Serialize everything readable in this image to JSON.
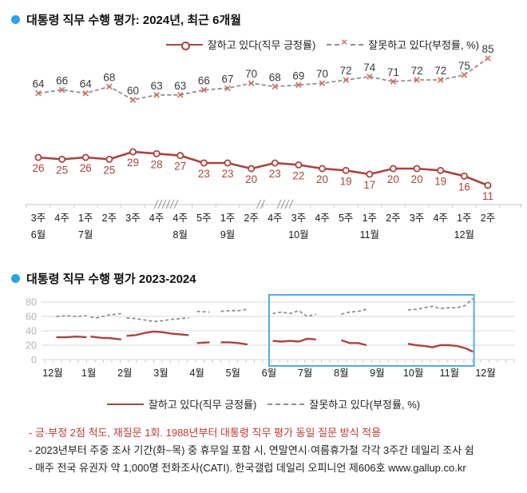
{
  "chart_data": [
    {
      "type": "line",
      "title": "대통령 직무 수행 평가: 2024년, 최근 6개월",
      "unit": "%",
      "x_week_labels": [
        "3주",
        "4주",
        "1주",
        "2주",
        "3주",
        "4주",
        "4주",
        "5주",
        "1주",
        "2주",
        "4주",
        "3주",
        "4주",
        "5주",
        "1주",
        "2주",
        "3주",
        "4주",
        "1주",
        "2주"
      ],
      "month_labels": [
        {
          "at": 0,
          "label": "6월"
        },
        {
          "at": 2,
          "label": "7월"
        },
        {
          "at": 6,
          "label": "8월"
        },
        {
          "at": 8,
          "label": "9월"
        },
        {
          "at": 11,
          "label": "10월"
        },
        {
          "at": 14,
          "label": "11월"
        },
        {
          "at": 18,
          "label": "12월"
        }
      ],
      "axis_break_after": [
        5,
        9,
        10
      ],
      "legend_position": "top",
      "series": [
        {
          "name": "잘하고 있다(직무 긍정률)",
          "line": "solid",
          "marker": "circle",
          "color": "#a8453e",
          "values": [
            26,
            25,
            26,
            25,
            29,
            28,
            27,
            23,
            23,
            20,
            23,
            22,
            20,
            19,
            17,
            20,
            20,
            19,
            16,
            11
          ]
        },
        {
          "name": "잘못하고 있다(부정률, %)",
          "line": "dashed",
          "marker": "x",
          "color": "#909090",
          "marker_color": "#d26b63",
          "values": [
            64,
            66,
            64,
            68,
            60,
            63,
            63,
            66,
            67,
            70,
            68,
            69,
            70,
            72,
            74,
            71,
            72,
            72,
            75,
            85
          ]
        }
      ]
    },
    {
      "type": "line",
      "title": "대통령 직무 수행 평가 2023-2024",
      "yticks": [
        0,
        20,
        40,
        60,
        80
      ],
      "ylim": [
        0,
        88
      ],
      "grid": true,
      "x_month_labels": [
        "12월",
        "1월",
        "2월",
        "3월",
        "4월",
        "5월",
        "6월",
        "7월",
        "8월",
        "9월",
        "10월",
        "11월",
        "12월"
      ],
      "highlight_box_months": [
        6.0,
        11.68
      ],
      "legend_position": "bottom",
      "series": [
        {
          "name": "잘하고 있다(직무 긍정률)",
          "line": "solid",
          "color": "#a8453e",
          "segments": [
            {
              "x": [
                0.1,
                0.38,
                0.66,
                0.94
              ],
              "v": [
                31,
                31,
                32,
                31
              ]
            },
            {
              "x": [
                1.05,
                1.22,
                1.39,
                1.56,
                1.73,
                1.9
              ],
              "v": [
                32,
                31,
                30,
                30,
                29,
                28
              ]
            },
            {
              "x": [
                2.05,
                2.3,
                2.55,
                2.8,
                3.05,
                3.3,
                3.55,
                3.77
              ],
              "v": [
                33,
                34,
                37,
                39,
                38,
                36,
                35,
                34
              ]
            },
            {
              "x": [
                4.0,
                4.35
              ],
              "v": [
                23,
                24
              ]
            },
            {
              "x": [
                4.66,
                4.9,
                5.15,
                5.4
              ],
              "v": [
                24,
                24,
                23,
                21
              ]
            },
            {
              "x": [
                6.1,
                6.34,
                6.58,
                6.82,
                7.06,
                7.3
              ],
              "v": [
                26,
                25,
                26,
                25,
                29,
                28
              ]
            },
            {
              "x": [
                8.0,
                8.23,
                8.47,
                8.7
              ],
              "v": [
                27,
                23,
                23,
                20
              ]
            },
            {
              "x": [
                9.85,
                10.08,
                10.3,
                10.53,
                10.75,
                10.98,
                11.2,
                11.43,
                11.65
              ],
              "v": [
                22,
                20,
                19,
                17,
                20,
                20,
                19,
                16,
                11
              ]
            }
          ]
        },
        {
          "name": "잘못하고 있다(부정률, %)",
          "line": "dashed",
          "color": "#8f8f8f",
          "segments": [
            {
              "x": [
                0.1,
                0.38,
                0.66,
                0.94
              ],
              "v": [
                60,
                61,
                60,
                61
              ]
            },
            {
              "x": [
                1.05,
                1.22,
                1.39,
                1.56,
                1.73,
                1.9
              ],
              "v": [
                59,
                58,
                60,
                62,
                63,
                64
              ]
            },
            {
              "x": [
                2.05,
                2.3,
                2.55,
                2.8,
                3.05,
                3.3,
                3.55,
                3.77
              ],
              "v": [
                58,
                57,
                55,
                53,
                54,
                56,
                57,
                58
              ]
            },
            {
              "x": [
                4.0,
                4.35
              ],
              "v": [
                67,
                66
              ]
            },
            {
              "x": [
                4.66,
                4.9,
                5.15,
                5.4
              ],
              "v": [
                67,
                68,
                68,
                70
              ]
            },
            {
              "x": [
                6.1,
                6.34,
                6.58,
                6.82,
                7.06,
                7.3
              ],
              "v": [
                64,
                66,
                64,
                68,
                60,
                63
              ]
            },
            {
              "x": [
                8.0,
                8.23,
                8.47,
                8.7
              ],
              "v": [
                63,
                66,
                67,
                70
              ]
            },
            {
              "x": [
                9.85,
                10.08,
                10.3,
                10.53,
                10.75,
                10.98,
                11.2,
                11.43,
                11.65
              ],
              "v": [
                69,
                70,
                72,
                74,
                71,
                72,
                72,
                75,
                85
              ]
            }
          ]
        }
      ]
    }
  ],
  "colors": {
    "bullet_blue": "#2ba1e8",
    "approve_red": "#a8453e",
    "disapprove_gray": "#8f8f8f",
    "x_marker_red": "#d26b63",
    "highlight_box_blue": "#53abe4",
    "footnote_red": "#c23b2e",
    "gridline": "#dadada",
    "axis": "#c8c8c8"
  },
  "footnotes": [
    "- 긍·부정 2점 척도, 재질문 1회. 1988년부터 대통령 직무 평가 동일 질문 방식 적용",
    "- 2023년부터 주중 조사 기간(화~목) 중 휴무일 포함 시, 연말연시·여름휴가철 각각 3주간 데일리 조사 쉼",
    "- 매주 전국 유권자 약 1,000명 전화조사(CATI). 한국갤럽 데일리 오피니언 제606호 www.gallup.co.kr"
  ]
}
